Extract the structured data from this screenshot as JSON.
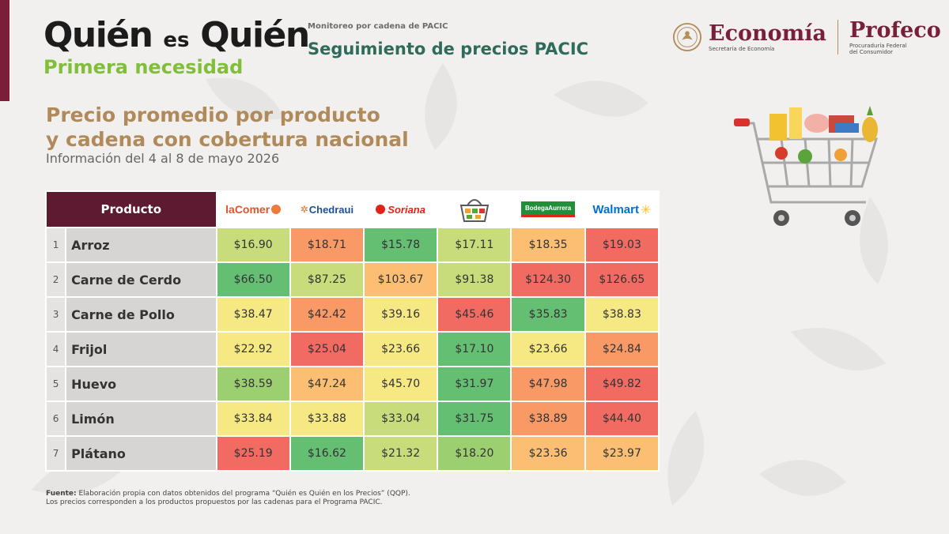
{
  "brand": {
    "title_a": "Quién",
    "title_es": "es",
    "title_b": "Quién",
    "subtitle": "Primera necesidad"
  },
  "header": {
    "monitor_label": "Monitoreo por cadena de PACIC",
    "monitor_title": "Seguimiento de precios PACIC"
  },
  "gov": {
    "economia": "Economía",
    "economia_sub": "Secretaría de Economía",
    "profeco": "Profeco",
    "profeco_sub_1": "Procuraduría Federal",
    "profeco_sub_2": "del Consumidor"
  },
  "heading": {
    "line1": "Precio promedio por producto",
    "line2": "y cadena con cobertura nacional",
    "date": "Información del 4 al 8 de mayo 2026"
  },
  "table": {
    "product_header": "Producto",
    "chains": [
      {
        "name": "laComer",
        "color": "#e0532b"
      },
      {
        "name": "Chedraui",
        "color": "#e06b1f"
      },
      {
        "name": "Soriana",
        "color": "#e2231a"
      },
      {
        "name": "",
        "icon": "basket-icon",
        "color": "#6b6b6b"
      },
      {
        "name": "BodegaAurrera",
        "color": "#1f8f3a"
      },
      {
        "name": "Walmart",
        "color": "#0071ce"
      }
    ],
    "rows": [
      {
        "num": "1",
        "name": "Arroz",
        "prices": [
          "$16.90",
          "$18.71",
          "$15.78",
          "$17.11",
          "$18.35",
          "$19.03"
        ],
        "levels": [
          3,
          6,
          1,
          3,
          5,
          7
        ]
      },
      {
        "num": "2",
        "name": "Carne de Cerdo",
        "prices": [
          "$66.50",
          "$87.25",
          "$103.67",
          "$91.38",
          "$124.30",
          "$126.65"
        ],
        "levels": [
          1,
          3,
          5,
          3,
          7,
          7
        ]
      },
      {
        "num": "3",
        "name": "Carne de Pollo",
        "prices": [
          "$38.47",
          "$42.42",
          "$39.16",
          "$45.46",
          "$35.83",
          "$38.83"
        ],
        "levels": [
          4,
          6,
          4,
          7,
          1,
          4
        ]
      },
      {
        "num": "4",
        "name": "Frijol",
        "prices": [
          "$22.92",
          "$25.04",
          "$23.66",
          "$17.10",
          "$23.66",
          "$24.84"
        ],
        "levels": [
          4,
          7,
          4,
          1,
          4,
          6
        ]
      },
      {
        "num": "5",
        "name": "Huevo",
        "prices": [
          "$38.59",
          "$47.24",
          "$45.70",
          "$31.97",
          "$47.98",
          "$49.82"
        ],
        "levels": [
          2,
          5,
          4,
          1,
          6,
          7
        ]
      },
      {
        "num": "6",
        "name": "Limón",
        "prices": [
          "$33.84",
          "$33.88",
          "$33.04",
          "$31.75",
          "$38.89",
          "$44.40"
        ],
        "levels": [
          4,
          4,
          3,
          1,
          6,
          7
        ]
      },
      {
        "num": "7",
        "name": "Plátano",
        "prices": [
          "$25.19",
          "$16.62",
          "$21.32",
          "$18.20",
          "$23.36",
          "$23.97"
        ],
        "levels": [
          7,
          1,
          3,
          2,
          5,
          5
        ]
      }
    ]
  },
  "source": {
    "label": "Fuente:",
    "line1": "Elaboración propia con datos obtenidos del programa “Quién es Quién en los Precios” (QQP).",
    "line2": "Los precios corresponden a los productos propuestos por las cadenas para el Programa PACIC."
  }
}
